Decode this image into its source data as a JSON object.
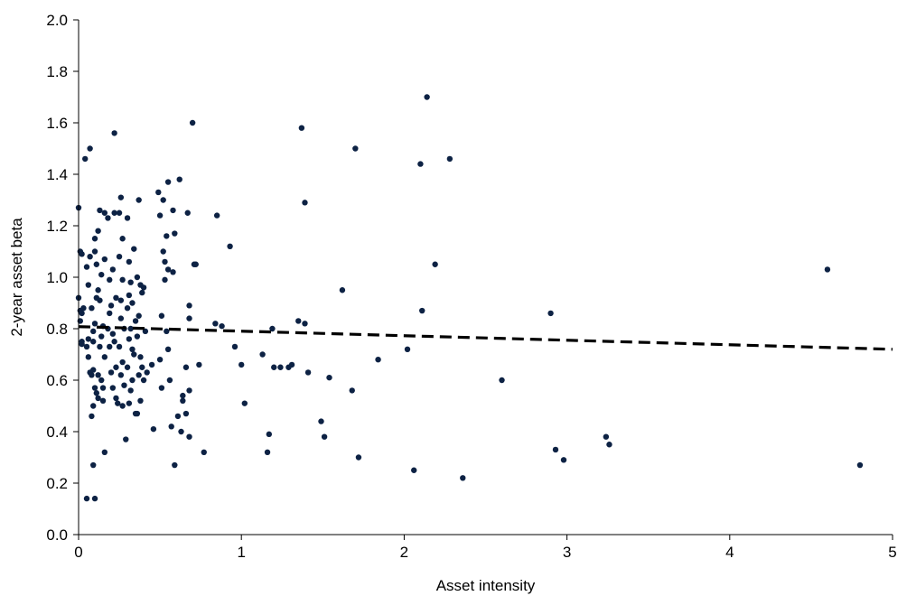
{
  "chart_data": {
    "type": "scatter",
    "title": "",
    "xlabel": "Asset intensity",
    "ylabel": "2-year asset beta",
    "xlim": [
      0,
      5
    ],
    "ylim": [
      0,
      2.0
    ],
    "x_ticks": [
      "0",
      "1",
      "2",
      "3",
      "4",
      "5"
    ],
    "y_ticks": [
      "0.0",
      "0.2",
      "0.4",
      "0.6",
      "0.8",
      "1.0",
      "1.2",
      "1.4",
      "1.6",
      "1.8",
      "2.0"
    ],
    "grid": false,
    "legend": "none",
    "colors": {
      "points": "#0d2244",
      "trend": "#000000",
      "axis": "#000000"
    },
    "trendline": {
      "style": "dashed",
      "x": [
        0,
        5
      ],
      "y": [
        0.808,
        0.72
      ]
    },
    "points": [
      [
        0.0,
        1.27
      ],
      [
        0.01,
        1.1
      ],
      [
        0.02,
        1.09
      ],
      [
        0.0,
        0.92
      ],
      [
        0.01,
        0.87
      ],
      [
        0.02,
        0.86
      ],
      [
        0.03,
        0.88
      ],
      [
        0.01,
        0.83
      ],
      [
        0.02,
        0.75
      ],
      [
        0.02,
        0.74
      ],
      [
        0.05,
        0.73
      ],
      [
        0.06,
        0.69
      ],
      [
        0.04,
        1.46
      ],
      [
        0.07,
        1.08
      ],
      [
        0.05,
        1.04
      ],
      [
        0.06,
        0.97
      ],
      [
        0.08,
        0.88
      ],
      [
        0.06,
        0.76
      ],
      [
        0.07,
        0.63
      ],
      [
        0.09,
        0.64
      ],
      [
        0.05,
        0.14
      ],
      [
        0.07,
        1.5
      ],
      [
        0.1,
        1.15
      ],
      [
        0.1,
        1.1
      ],
      [
        0.11,
        1.05
      ],
      [
        0.11,
        0.92
      ],
      [
        0.1,
        0.82
      ],
      [
        0.09,
        0.79
      ],
      [
        0.09,
        0.75
      ],
      [
        0.08,
        0.62
      ],
      [
        0.1,
        0.57
      ],
      [
        0.11,
        0.55
      ],
      [
        0.09,
        0.5
      ],
      [
        0.08,
        0.46
      ],
      [
        0.09,
        0.27
      ],
      [
        0.1,
        0.14
      ],
      [
        0.13,
        1.26
      ],
      [
        0.12,
        1.18
      ],
      [
        0.14,
        1.01
      ],
      [
        0.12,
        0.95
      ],
      [
        0.13,
        0.91
      ],
      [
        0.14,
        0.77
      ],
      [
        0.13,
        0.73
      ],
      [
        0.12,
        0.62
      ],
      [
        0.14,
        0.6
      ],
      [
        0.15,
        0.57
      ],
      [
        0.12,
        0.53
      ],
      [
        0.16,
        1.25
      ],
      [
        0.16,
        1.07
      ],
      [
        0.15,
        0.81
      ],
      [
        0.16,
        0.69
      ],
      [
        0.15,
        0.52
      ],
      [
        0.16,
        0.32
      ],
      [
        0.18,
        1.23
      ],
      [
        0.19,
        0.99
      ],
      [
        0.2,
        0.89
      ],
      [
        0.19,
        0.86
      ],
      [
        0.18,
        0.8
      ],
      [
        0.21,
        0.78
      ],
      [
        0.19,
        0.73
      ],
      [
        0.2,
        0.63
      ],
      [
        0.21,
        0.57
      ],
      [
        0.22,
        1.56
      ],
      [
        0.22,
        1.25
      ],
      [
        0.21,
        1.03
      ],
      [
        0.23,
        0.92
      ],
      [
        0.22,
        0.75
      ],
      [
        0.23,
        0.65
      ],
      [
        0.24,
        0.51
      ],
      [
        0.23,
        0.53
      ],
      [
        0.25,
        1.25
      ],
      [
        0.26,
        1.31
      ],
      [
        0.27,
        1.15
      ],
      [
        0.25,
        1.08
      ],
      [
        0.27,
        0.99
      ],
      [
        0.26,
        0.91
      ],
      [
        0.26,
        0.84
      ],
      [
        0.28,
        0.8
      ],
      [
        0.25,
        0.73
      ],
      [
        0.27,
        0.67
      ],
      [
        0.26,
        0.62
      ],
      [
        0.28,
        0.58
      ],
      [
        0.27,
        0.5
      ],
      [
        0.29,
        0.37
      ],
      [
        0.3,
        1.23
      ],
      [
        0.31,
        1.06
      ],
      [
        0.32,
        0.98
      ],
      [
        0.31,
        0.93
      ],
      [
        0.3,
        0.88
      ],
      [
        0.32,
        0.8
      ],
      [
        0.31,
        0.76
      ],
      [
        0.33,
        0.72
      ],
      [
        0.3,
        0.65
      ],
      [
        0.32,
        0.56
      ],
      [
        0.31,
        0.51
      ],
      [
        0.34,
        1.11
      ],
      [
        0.33,
        0.9
      ],
      [
        0.35,
        0.83
      ],
      [
        0.34,
        0.7
      ],
      [
        0.33,
        0.6
      ],
      [
        0.35,
        0.47
      ],
      [
        0.37,
        1.3
      ],
      [
        0.36,
        1.0
      ],
      [
        0.38,
        0.97
      ],
      [
        0.39,
        0.94
      ],
      [
        0.37,
        0.85
      ],
      [
        0.36,
        0.77
      ],
      [
        0.38,
        0.69
      ],
      [
        0.39,
        0.65
      ],
      [
        0.37,
        0.62
      ],
      [
        0.38,
        0.52
      ],
      [
        0.36,
        0.47
      ],
      [
        0.4,
        0.96
      ],
      [
        0.41,
        0.79
      ],
      [
        0.42,
        0.63
      ],
      [
        0.4,
        0.6
      ],
      [
        0.45,
        0.66
      ],
      [
        0.46,
        0.41
      ],
      [
        0.49,
        1.33
      ],
      [
        0.5,
        1.24
      ],
      [
        0.5,
        0.68
      ],
      [
        0.51,
        0.85
      ],
      [
        0.51,
        0.57
      ],
      [
        0.52,
        1.3
      ],
      [
        0.52,
        1.1
      ],
      [
        0.53,
        1.06
      ],
      [
        0.53,
        0.99
      ],
      [
        0.54,
        1.16
      ],
      [
        0.54,
        0.79
      ],
      [
        0.55,
        1.37
      ],
      [
        0.55,
        1.03
      ],
      [
        0.55,
        0.72
      ],
      [
        0.56,
        0.6
      ],
      [
        0.57,
        0.42
      ],
      [
        0.58,
        1.26
      ],
      [
        0.58,
        1.02
      ],
      [
        0.59,
        1.17
      ],
      [
        0.59,
        0.27
      ],
      [
        0.61,
        0.46
      ],
      [
        0.62,
        1.38
      ],
      [
        0.63,
        0.4
      ],
      [
        0.64,
        0.54
      ],
      [
        0.64,
        0.52
      ],
      [
        0.66,
        0.65
      ],
      [
        0.66,
        0.47
      ],
      [
        0.67,
        1.25
      ],
      [
        0.68,
        0.89
      ],
      [
        0.68,
        0.84
      ],
      [
        0.68,
        0.56
      ],
      [
        0.68,
        0.38
      ],
      [
        0.7,
        1.6
      ],
      [
        0.71,
        1.05
      ],
      [
        0.72,
        1.05
      ],
      [
        0.74,
        0.66
      ],
      [
        0.77,
        0.32
      ],
      [
        0.84,
        0.82
      ],
      [
        0.85,
        1.24
      ],
      [
        0.88,
        0.81
      ],
      [
        0.93,
        1.12
      ],
      [
        0.96,
        0.73
      ],
      [
        1.0,
        0.66
      ],
      [
        1.02,
        0.51
      ],
      [
        1.13,
        0.7
      ],
      [
        1.16,
        0.32
      ],
      [
        1.17,
        0.39
      ],
      [
        1.19,
        0.8
      ],
      [
        1.2,
        0.65
      ],
      [
        1.24,
        0.65
      ],
      [
        1.29,
        0.65
      ],
      [
        1.31,
        0.66
      ],
      [
        1.35,
        0.83
      ],
      [
        1.37,
        1.58
      ],
      [
        1.39,
        0.82
      ],
      [
        1.39,
        1.29
      ],
      [
        1.41,
        0.63
      ],
      [
        1.49,
        0.44
      ],
      [
        1.51,
        0.38
      ],
      [
        1.54,
        0.61
      ],
      [
        1.62,
        0.95
      ],
      [
        1.68,
        0.56
      ],
      [
        1.7,
        1.5
      ],
      [
        1.72,
        0.3
      ],
      [
        1.84,
        0.68
      ],
      [
        2.02,
        0.72
      ],
      [
        2.06,
        0.25
      ],
      [
        2.1,
        1.44
      ],
      [
        2.11,
        0.87
      ],
      [
        2.14,
        1.7
      ],
      [
        2.19,
        1.05
      ],
      [
        2.28,
        1.46
      ],
      [
        2.36,
        0.22
      ],
      [
        2.6,
        0.6
      ],
      [
        2.9,
        0.86
      ],
      [
        2.93,
        0.33
      ],
      [
        2.98,
        0.29
      ],
      [
        3.24,
        0.38
      ],
      [
        3.26,
        0.35
      ],
      [
        4.6,
        1.03
      ],
      [
        4.8,
        0.27
      ]
    ]
  }
}
